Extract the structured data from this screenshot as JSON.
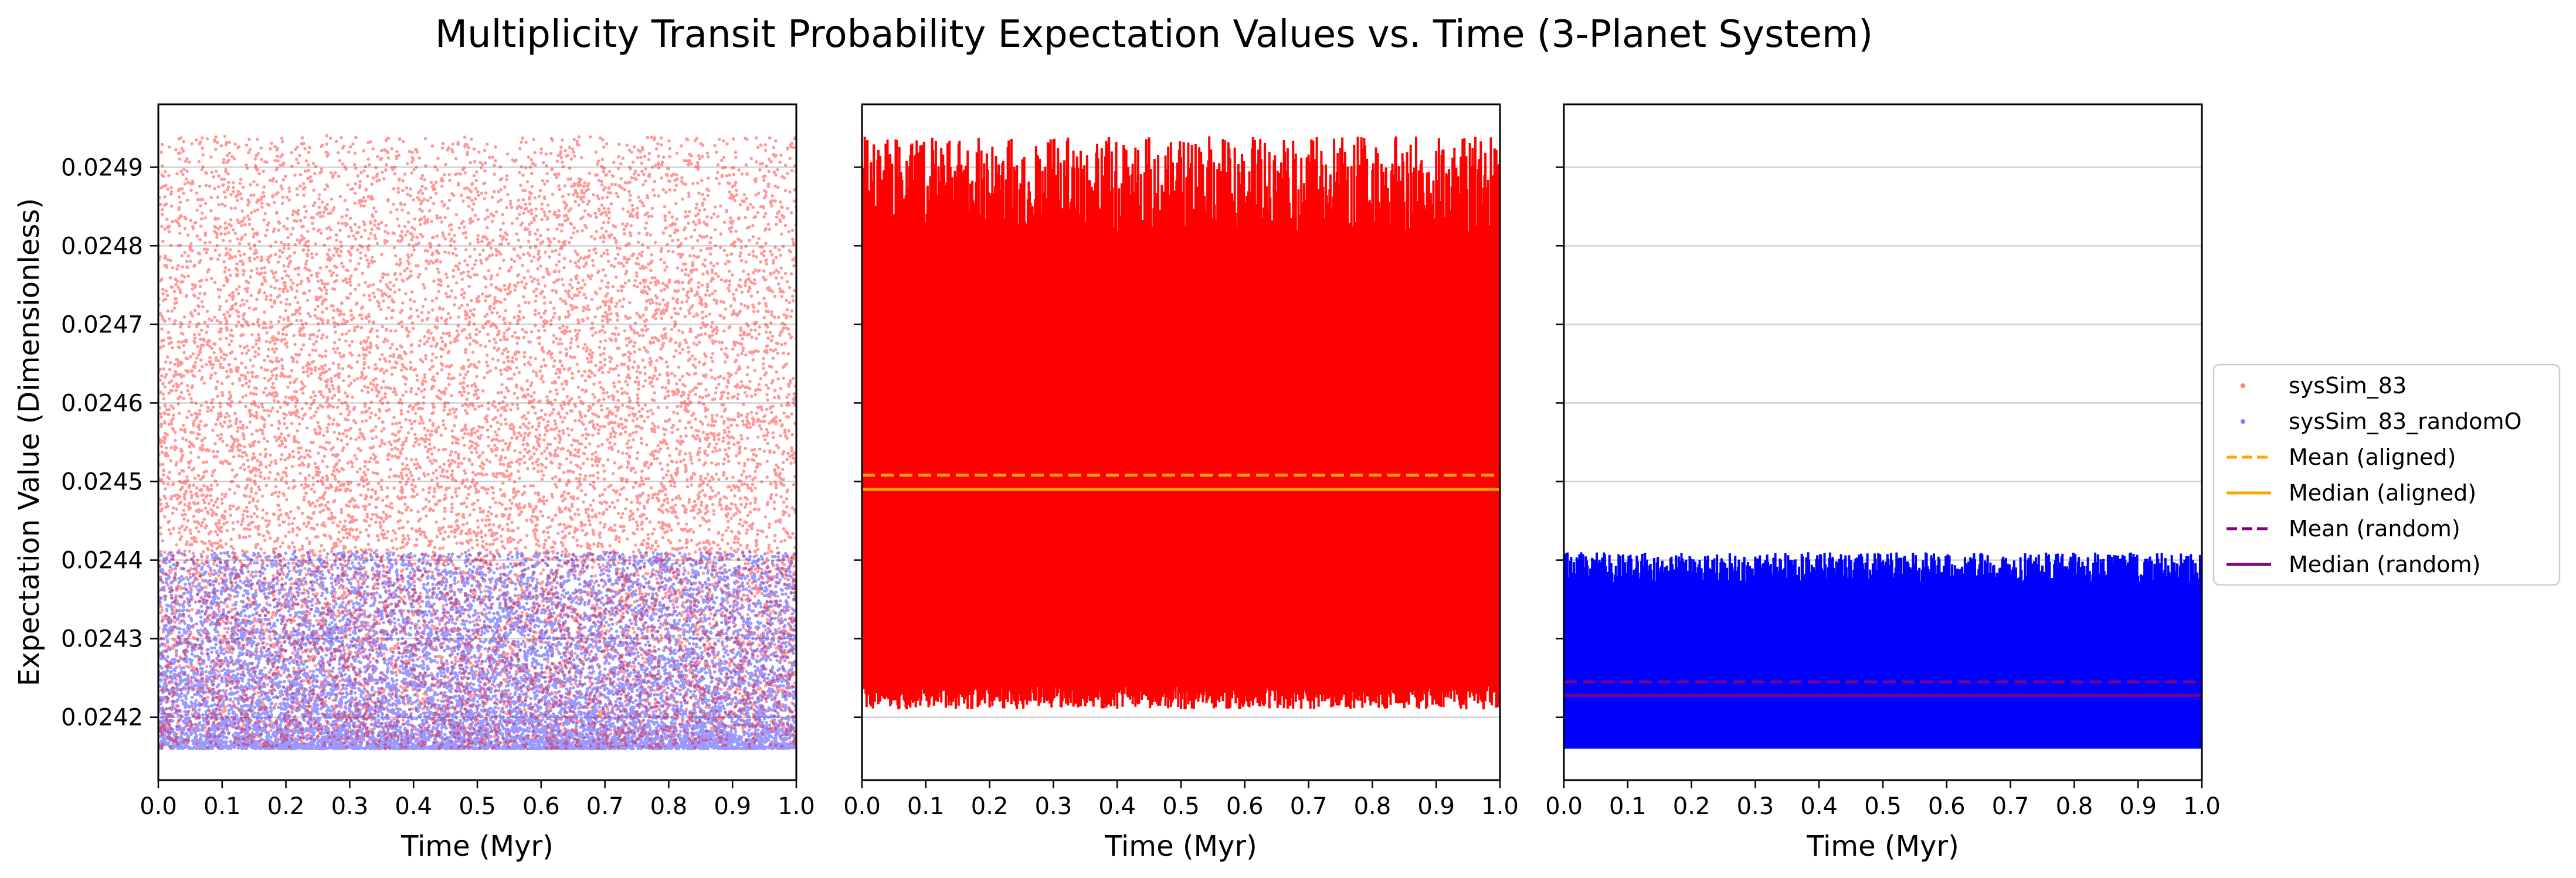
{
  "figure": {
    "title": "Multiplicity Transit Probability Expectation Values vs. Time (3-Planet System)"
  },
  "legend": {
    "placement": "right",
    "entries": [
      {
        "label": "sysSim_83",
        "style": "scatter-dot",
        "color": "#ff0000"
      },
      {
        "label": "sysSim_83_randomO",
        "style": "scatter-dot",
        "color": "#0000ff"
      },
      {
        "label": "Mean (aligned)",
        "style": "dashed-line",
        "color": "#ffa500"
      },
      {
        "label": "Median (aligned)",
        "style": "solid-line",
        "color": "#ffa500"
      },
      {
        "label": "Mean (random)",
        "style": "dashed-line",
        "color": "#800080"
      },
      {
        "label": "Median (random)",
        "style": "solid-line",
        "color": "#800080"
      }
    ]
  },
  "chart_data": [
    {
      "type": "scatter",
      "panel": "left",
      "xlabel": "Time (Myr)",
      "ylabel": "Expectation Value (Dimensionless)",
      "xlim": [
        0.0,
        1.0
      ],
      "ylim": [
        0.02412,
        0.02498
      ],
      "xticks": [
        "0.0",
        "0.1",
        "0.2",
        "0.3",
        "0.4",
        "0.5",
        "0.6",
        "0.7",
        "0.8",
        "0.9",
        "1.0"
      ],
      "yticks": [
        "0.0242",
        "0.0243",
        "0.0244",
        "0.0245",
        "0.0246",
        "0.0247",
        "0.0248",
        "0.0249"
      ],
      "grid": "horizontal",
      "series": [
        {
          "name": "sysSim_83",
          "color": "#ff0000",
          "alpha": 0.4,
          "n_points_approx": 12000,
          "y_min": 0.02416,
          "y_max": 0.02494,
          "x_range": [
            0.0,
            1.0
          ]
        },
        {
          "name": "sysSim_83_randomO",
          "color": "#0000ff",
          "alpha": 0.4,
          "n_points_approx": 12000,
          "y_min": 0.02416,
          "y_max": 0.02441,
          "x_range": [
            0.0,
            1.0
          ]
        }
      ]
    },
    {
      "type": "line",
      "panel": "middle",
      "xlabel": "Time (Myr)",
      "xlim": [
        0.0,
        1.0
      ],
      "ylim": [
        0.02412,
        0.02498
      ],
      "xticks": [
        "0.0",
        "0.1",
        "0.2",
        "0.3",
        "0.4",
        "0.5",
        "0.6",
        "0.7",
        "0.8",
        "0.9",
        "1.0"
      ],
      "grid": "horizontal",
      "series": [
        {
          "name": "sysSim_83",
          "color": "#ff0000",
          "y_min_envelope": [
            0.02421,
            0.02424
          ],
          "y_max_envelope": [
            0.02481,
            0.02494
          ]
        }
      ],
      "hlines": [
        {
          "name": "Mean (aligned)",
          "y": 0.024508,
          "color": "#ffa500",
          "style": "dashed"
        },
        {
          "name": "Median (aligned)",
          "y": 0.02449,
          "color": "#ffa500",
          "style": "solid"
        }
      ]
    },
    {
      "type": "line",
      "panel": "right",
      "xlabel": "Time (Myr)",
      "xlim": [
        0.0,
        1.0
      ],
      "ylim": [
        0.02412,
        0.02498
      ],
      "xticks": [
        "0.0",
        "0.1",
        "0.2",
        "0.3",
        "0.4",
        "0.5",
        "0.6",
        "0.7",
        "0.8",
        "0.9",
        "1.0"
      ],
      "grid": "horizontal",
      "series": [
        {
          "name": "sysSim_83_randomO",
          "color": "#0000ff",
          "y_min": 0.02416,
          "y_max_envelope": [
            0.02437,
            0.02441
          ]
        }
      ],
      "hlines": [
        {
          "name": "Mean (random)",
          "y": 0.024245,
          "color": "#800080",
          "style": "dashed"
        },
        {
          "name": "Median (random)",
          "y": 0.024228,
          "color": "#800080",
          "style": "solid"
        }
      ]
    }
  ]
}
